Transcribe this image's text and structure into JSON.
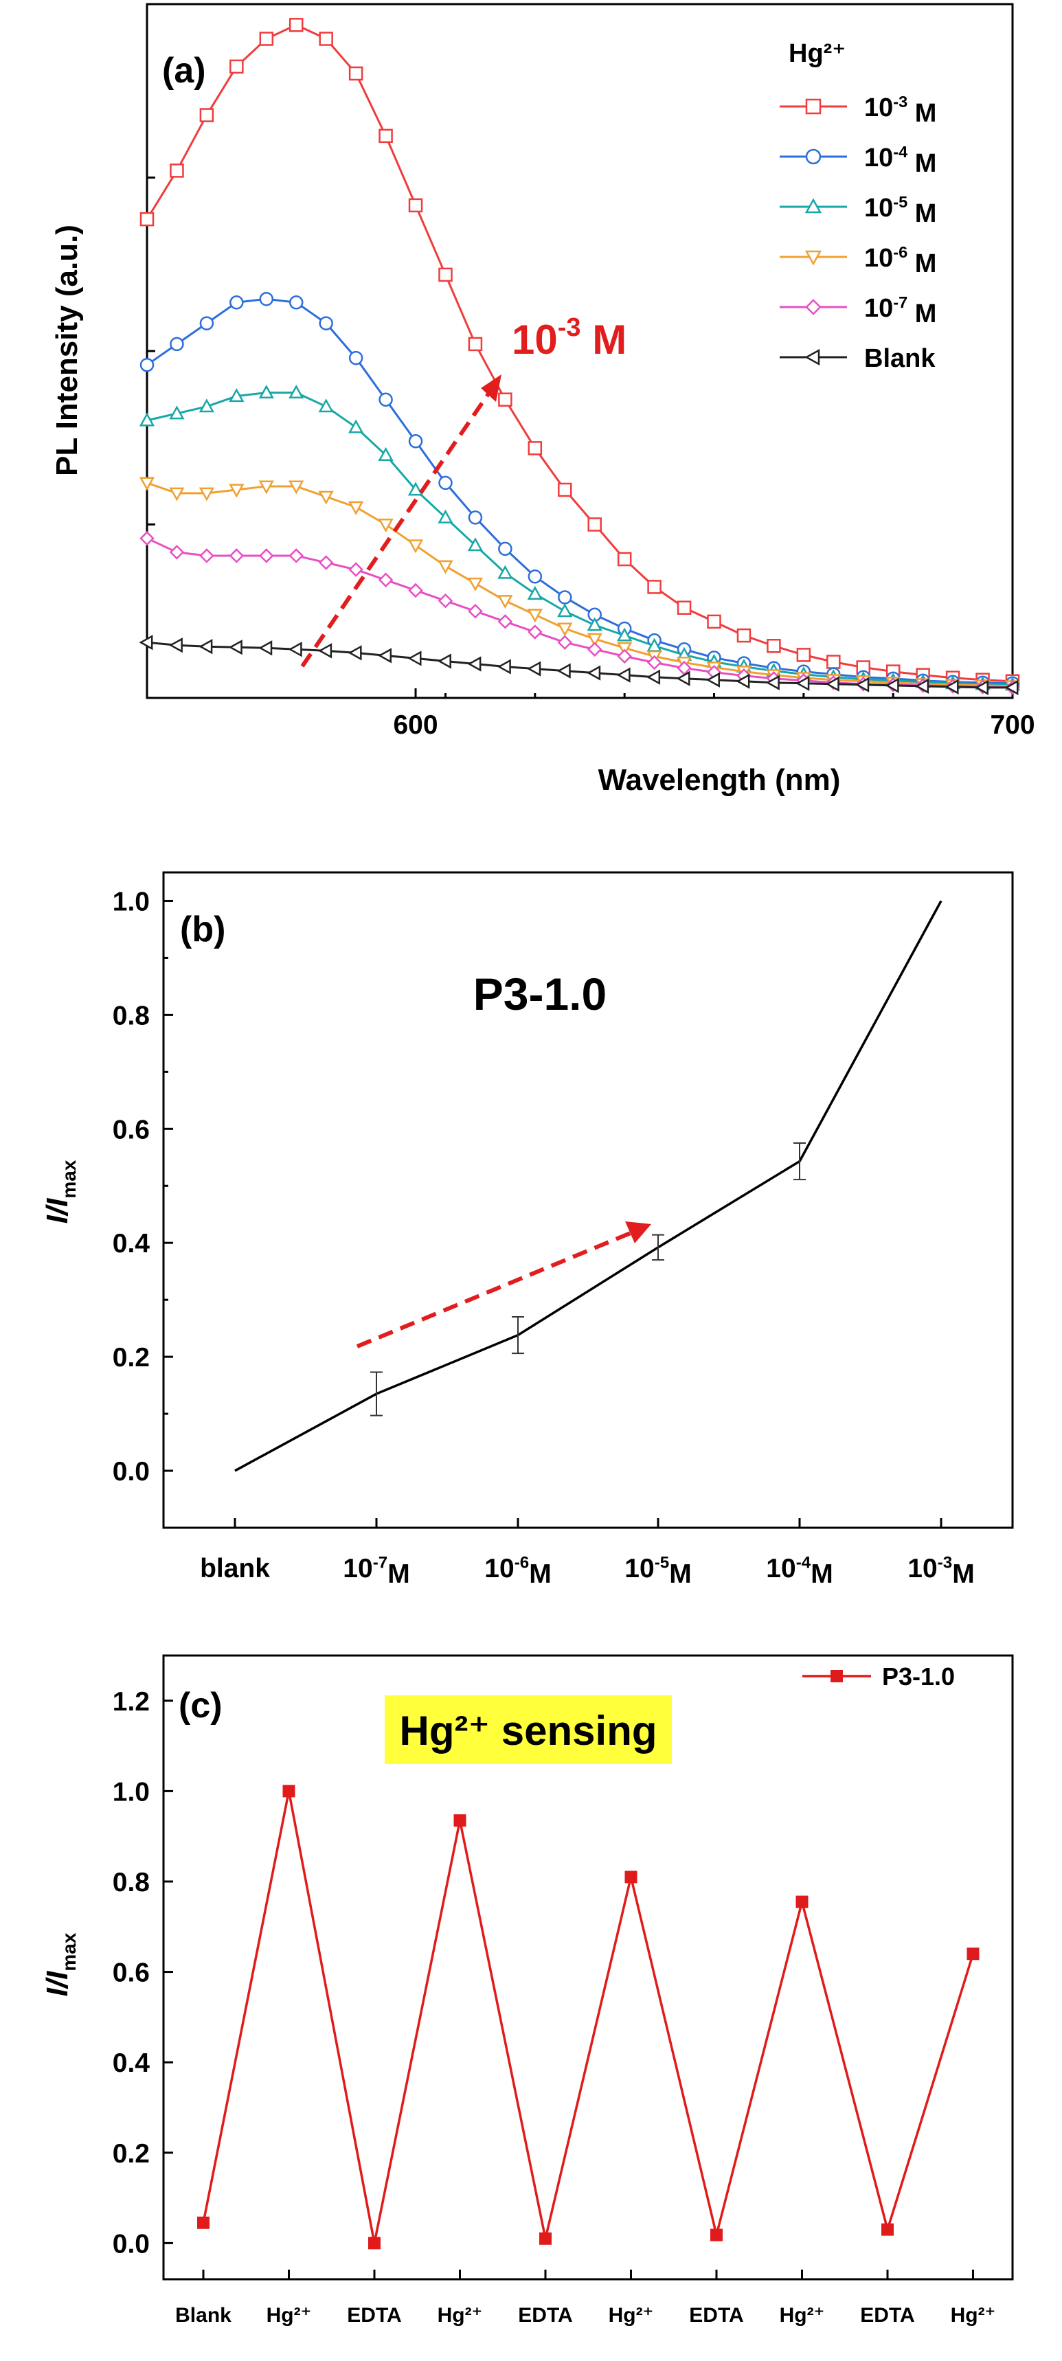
{
  "chart_data": [
    {
      "panel": "(a)",
      "type": "line",
      "xlabel": "Wavelength (nm)",
      "ylabel": "PL Intensity (a.u.)",
      "xlim": [
        555,
        700
      ],
      "ylim": [
        0,
        100
      ],
      "xticks": [
        600,
        700
      ],
      "legend_title": "Hg²⁺",
      "annotation": {
        "text": "10",
        "sup": "-3",
        "suffix": " M"
      },
      "x": [
        555,
        560,
        565,
        570,
        575,
        580,
        585,
        590,
        595,
        600,
        605,
        610,
        615,
        620,
        625,
        630,
        635,
        640,
        645,
        650,
        655,
        660,
        665,
        670,
        675,
        680,
        685,
        690,
        695,
        700
      ],
      "series": [
        {
          "name": "10",
          "sup": "-3",
          "suffix": " M",
          "color": "#f03c3c",
          "marker": "square",
          "values": [
            69,
            76,
            84,
            91,
            95,
            97,
            95,
            90,
            81,
            71,
            61,
            51,
            43,
            36,
            30,
            25,
            20,
            16,
            13,
            11,
            9,
            7.5,
            6.2,
            5.2,
            4.4,
            3.8,
            3.3,
            2.9,
            2.6,
            2.4
          ]
        },
        {
          "name": "10",
          "sup": "-4",
          "suffix": " M",
          "color": "#2d6edc",
          "marker": "circle",
          "values": [
            48,
            51,
            54,
            57,
            57.5,
            57,
            54,
            49,
            43,
            37,
            31,
            26,
            21.5,
            17.5,
            14.5,
            12,
            10,
            8.3,
            7,
            5.8,
            5,
            4.3,
            3.8,
            3.4,
            3,
            2.8,
            2.5,
            2.3,
            2.2,
            2.1
          ]
        },
        {
          "name": "10",
          "sup": "-5",
          "suffix": " M",
          "color": "#17a7a7",
          "marker": "triangle",
          "values": [
            40,
            41,
            42,
            43.5,
            44,
            44,
            42,
            39,
            35,
            30,
            26,
            22,
            18,
            15,
            12.5,
            10.5,
            9,
            7.5,
            6.2,
            5.2,
            4.5,
            3.9,
            3.4,
            3,
            2.7,
            2.5,
            2.3,
            2.1,
            2,
            1.9
          ]
        },
        {
          "name": "10",
          "sup": "-6",
          "suffix": " M",
          "color": "#f0a030",
          "marker": "triangle-down",
          "values": [
            31,
            29.5,
            29.5,
            30,
            30.5,
            30.5,
            29,
            27.5,
            25,
            22,
            19,
            16.5,
            14,
            12,
            10,
            8.5,
            7.2,
            6,
            5.1,
            4.4,
            3.8,
            3.3,
            2.9,
            2.6,
            2.4,
            2.2,
            2,
            1.9,
            1.8,
            1.7
          ]
        },
        {
          "name": "10",
          "sup": "-7",
          "suffix": " M",
          "color": "#e84fc4",
          "marker": "diamond",
          "values": [
            23,
            21,
            20.5,
            20.5,
            20.5,
            20.5,
            19.5,
            18.5,
            17,
            15.5,
            14,
            12.5,
            11,
            9.5,
            8,
            7,
            6,
            5.1,
            4.3,
            3.7,
            3.2,
            2.8,
            2.5,
            2.2,
            2,
            1.9,
            1.8,
            1.7,
            1.6,
            1.5
          ]
        },
        {
          "name": "Blank",
          "color": "#222222",
          "marker": "triangle-left",
          "values": [
            8,
            7.6,
            7.4,
            7.3,
            7.2,
            7,
            6.8,
            6.5,
            6.1,
            5.7,
            5.3,
            4.9,
            4.5,
            4.2,
            3.9,
            3.6,
            3.3,
            3,
            2.8,
            2.6,
            2.4,
            2.2,
            2.1,
            2,
            1.9,
            1.8,
            1.7,
            1.6,
            1.5,
            1.5
          ]
        }
      ]
    },
    {
      "panel": "(b)",
      "type": "line",
      "title": "P3-1.0",
      "ylabel": "I/I",
      "ylabel_sub": "max",
      "ylim": [
        -0.1,
        1.05
      ],
      "yticks": [
        0.0,
        0.2,
        0.4,
        0.6,
        0.8,
        1.0
      ],
      "categories": [
        {
          "base": "blank",
          "sup": "",
          "suffix": ""
        },
        {
          "base": "10",
          "sup": "-7",
          "suffix": "M"
        },
        {
          "base": "10",
          "sup": "-6",
          "suffix": "M"
        },
        {
          "base": "10",
          "sup": "-5",
          "suffix": "M"
        },
        {
          "base": "10",
          "sup": "-4",
          "suffix": "M"
        },
        {
          "base": "10",
          "sup": "-3",
          "suffix": "M"
        }
      ],
      "values": [
        0.0,
        0.135,
        0.238,
        0.392,
        0.543,
        1.0
      ],
      "errors": [
        0,
        0.038,
        0.032,
        0.022,
        0.032,
        0
      ],
      "color": "#000000"
    },
    {
      "panel": "(c)",
      "type": "line",
      "title": "Hg²⁺ sensing",
      "title_color": "#ffff3b",
      "ylabel": "I/I",
      "ylabel_sub": "max",
      "ylim": [
        -0.08,
        1.3
      ],
      "yticks": [
        0.0,
        0.2,
        0.4,
        0.6,
        0.8,
        1.0,
        1.2
      ],
      "categories": [
        "Blank",
        "Hg²⁺",
        "EDTA",
        "Hg²⁺",
        "EDTA",
        "Hg²⁺",
        "EDTA",
        "Hg²⁺",
        "EDTA",
        "Hg²⁺"
      ],
      "series": [
        {
          "name": "P3-1.0",
          "color": "#e01b1b",
          "values": [
            0.045,
            1.0,
            0.0,
            0.935,
            0.01,
            0.81,
            0.018,
            0.755,
            0.03,
            0.64
          ]
        }
      ]
    }
  ]
}
